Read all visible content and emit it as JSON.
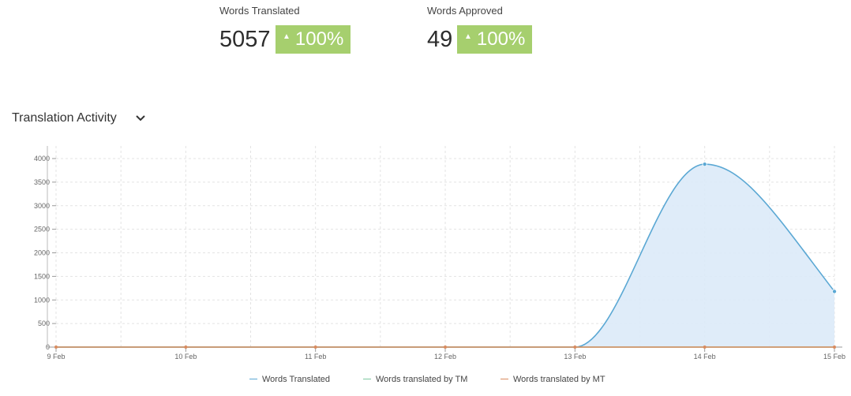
{
  "stats": [
    {
      "label": "Words Translated",
      "value": "5057",
      "change": "100%"
    },
    {
      "label": "Words Approved",
      "value": "49",
      "change": "100%"
    }
  ],
  "section": {
    "title": "Translation Activity"
  },
  "colors": {
    "translated": "#5ba8d4",
    "tm": "#7dc8a0",
    "mt": "#d98b5f",
    "area_fill": "#dbeaf8",
    "badge": "#a6cf6e"
  },
  "chart_data": {
    "type": "area",
    "categories": [
      "9 Feb",
      "10 Feb",
      "11 Feb",
      "12 Feb",
      "13 Feb",
      "14 Feb",
      "15 Feb"
    ],
    "ylim": [
      0,
      4000
    ],
    "yticks": [
      0,
      500,
      1000,
      1500,
      2000,
      2500,
      3000,
      3500,
      4000
    ],
    "series": [
      {
        "name": "Words Translated",
        "values": [
          0,
          0,
          0,
          0,
          0,
          3880,
          1180
        ]
      },
      {
        "name": "Words translated by TM",
        "values": [
          0,
          0,
          0,
          0,
          0,
          0,
          0
        ]
      },
      {
        "name": "Words translated by MT",
        "values": [
          0,
          0,
          0,
          0,
          0,
          0,
          0
        ]
      }
    ],
    "grid": true,
    "legend": "bottom"
  }
}
